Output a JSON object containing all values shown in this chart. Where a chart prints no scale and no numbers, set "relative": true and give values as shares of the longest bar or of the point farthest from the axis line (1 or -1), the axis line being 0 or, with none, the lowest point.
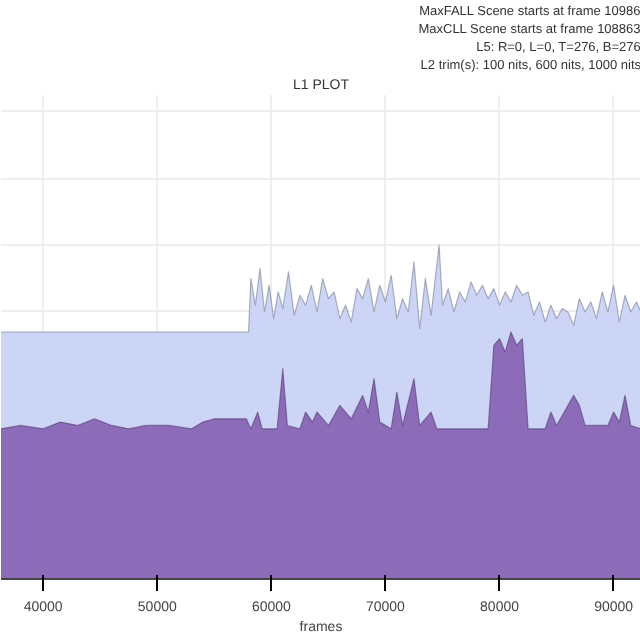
{
  "chart_data": {
    "type": "area",
    "title": "L1 PLOT",
    "xlabel": "frames",
    "annotations": [
      "MaxFALL Scene starts at frame 10986",
      "MaxCLL Scene starts at frame 108863",
      "L5: R=0, L=0, T=276, B=276",
      "L2 trim(s): 100 nits, 600 nits, 1000 nits"
    ],
    "relative": true,
    "xlim": [
      36300,
      92400
    ],
    "xticks": [
      40000,
      50000,
      60000,
      70000,
      80000,
      90000
    ],
    "grid": true,
    "series": [
      {
        "color": "#ccd5f5",
        "x": [
          36300,
          58000,
          58200,
          58600,
          59000,
          59400,
          59800,
          60200,
          60600,
          61000,
          61500,
          62000,
          62500,
          63000,
          63500,
          64000,
          64500,
          65000,
          65500,
          66000,
          66500,
          67000,
          67500,
          68000,
          68500,
          69000,
          69500,
          70000,
          70500,
          71000,
          71500,
          72000,
          72500,
          73000,
          73500,
          74000,
          74700,
          75000,
          75500,
          76000,
          76500,
          77000,
          77500,
          78000,
          78500,
          79000,
          79500,
          80000,
          80500,
          81000,
          81500,
          82000,
          82500,
          83000,
          83500,
          84000,
          84500,
          85000,
          85500,
          86000,
          86500,
          87000,
          87500,
          88000,
          88500,
          89000,
          89500,
          90000,
          90500,
          91000,
          91500,
          92000,
          92400
        ],
        "values": [
          0.74,
          0.74,
          0.9,
          0.82,
          0.93,
          0.8,
          0.88,
          0.78,
          0.86,
          0.81,
          0.92,
          0.79,
          0.85,
          0.82,
          0.88,
          0.8,
          0.9,
          0.84,
          0.86,
          0.78,
          0.82,
          0.77,
          0.87,
          0.84,
          0.9,
          0.8,
          0.88,
          0.83,
          0.91,
          0.78,
          0.84,
          0.8,
          0.95,
          0.75,
          0.9,
          0.79,
          1.0,
          0.82,
          0.87,
          0.8,
          0.86,
          0.83,
          0.89,
          0.85,
          0.88,
          0.84,
          0.87,
          0.82,
          0.86,
          0.83,
          0.88,
          0.85,
          0.86,
          0.79,
          0.83,
          0.77,
          0.82,
          0.78,
          0.81,
          0.8,
          0.76,
          0.84,
          0.8,
          0.83,
          0.78,
          0.86,
          0.8,
          0.88,
          0.77,
          0.85,
          0.8,
          0.83,
          0.8
        ]
      },
      {
        "color": "#8c6bb8",
        "x": [
          36300,
          38000,
          40000,
          41500,
          43000,
          44500,
          46000,
          47500,
          49000,
          51000,
          53000,
          54000,
          55000,
          56500,
          57800,
          58200,
          58800,
          59200,
          60500,
          61000,
          61400,
          62500,
          63000,
          63600,
          64000,
          65000,
          66000,
          67000,
          68000,
          68500,
          69000,
          69500,
          70500,
          71000,
          71500,
          72500,
          73000,
          74000,
          74500,
          76000,
          79000,
          79500,
          80000,
          80500,
          81000,
          81500,
          82000,
          82500,
          84000,
          84500,
          85000,
          86500,
          87000,
          87500,
          89500,
          90000,
          90500,
          91000,
          91500,
          92400
        ],
        "values": [
          0.45,
          0.46,
          0.45,
          0.47,
          0.46,
          0.48,
          0.46,
          0.45,
          0.46,
          0.46,
          0.45,
          0.47,
          0.48,
          0.48,
          0.48,
          0.45,
          0.5,
          0.45,
          0.45,
          0.63,
          0.46,
          0.45,
          0.5,
          0.47,
          0.5,
          0.46,
          0.52,
          0.48,
          0.55,
          0.5,
          0.6,
          0.47,
          0.45,
          0.56,
          0.46,
          0.6,
          0.46,
          0.5,
          0.45,
          0.45,
          0.45,
          0.7,
          0.72,
          0.68,
          0.74,
          0.7,
          0.72,
          0.45,
          0.45,
          0.5,
          0.46,
          0.55,
          0.52,
          0.46,
          0.46,
          0.5,
          0.47,
          0.55,
          0.46,
          0.45
        ]
      }
    ]
  }
}
